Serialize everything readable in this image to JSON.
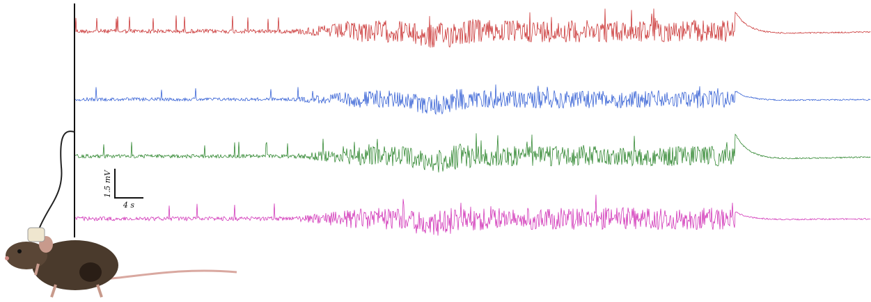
{
  "scale_bar": {
    "vertical": "1.5 mV",
    "horizontal": "4 s"
  }
}
